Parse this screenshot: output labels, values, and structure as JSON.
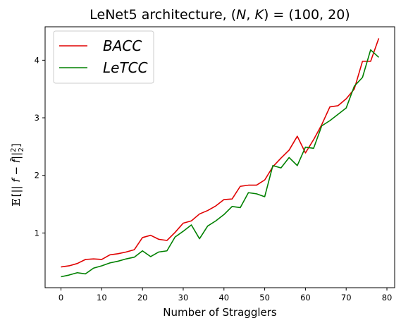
{
  "chart_data": {
    "type": "line",
    "title": "LeNet5 architecture, (N, K) = (100, 20)",
    "xlabel": "Number of Stragglers",
    "ylabel": "E[ || f − f̂ ||²₂ ]",
    "xlim": [
      -3.9,
      81.9
    ],
    "ylim": [
      0.05,
      4.58
    ],
    "xticks": [
      0,
      10,
      20,
      30,
      40,
      50,
      60,
      70,
      80
    ],
    "yticks": [
      1,
      2,
      3,
      4
    ],
    "grid": false,
    "legend_position": "top-left",
    "x": [
      0,
      2,
      4,
      6,
      8,
      10,
      12,
      14,
      16,
      18,
      20,
      22,
      24,
      26,
      28,
      30,
      32,
      34,
      36,
      38,
      40,
      42,
      44,
      46,
      48,
      50,
      52,
      54,
      56,
      58,
      60,
      62,
      64,
      66,
      68,
      70,
      72,
      74,
      76,
      78
    ],
    "series": [
      {
        "name": "BACC",
        "color": "#e00000",
        "values": [
          0.41,
          0.43,
          0.47,
          0.54,
          0.55,
          0.54,
          0.62,
          0.64,
          0.67,
          0.71,
          0.92,
          0.96,
          0.89,
          0.87,
          1.01,
          1.17,
          1.21,
          1.33,
          1.39,
          1.47,
          1.58,
          1.59,
          1.81,
          1.83,
          1.83,
          1.92,
          2.15,
          2.3,
          2.44,
          2.68,
          2.39,
          2.62,
          2.88,
          3.19,
          3.21,
          3.33,
          3.5,
          3.98,
          3.98,
          4.38
        ]
      },
      {
        "name": "LeTCC",
        "color": "#008000",
        "values": [
          0.24,
          0.27,
          0.31,
          0.29,
          0.39,
          0.43,
          0.48,
          0.51,
          0.55,
          0.58,
          0.69,
          0.59,
          0.67,
          0.69,
          0.93,
          1.03,
          1.14,
          0.9,
          1.12,
          1.21,
          1.32,
          1.46,
          1.44,
          1.7,
          1.68,
          1.63,
          2.17,
          2.13,
          2.31,
          2.17,
          2.49,
          2.47,
          2.86,
          2.95,
          3.06,
          3.17,
          3.55,
          3.7,
          4.18,
          4.05
        ]
      }
    ]
  }
}
